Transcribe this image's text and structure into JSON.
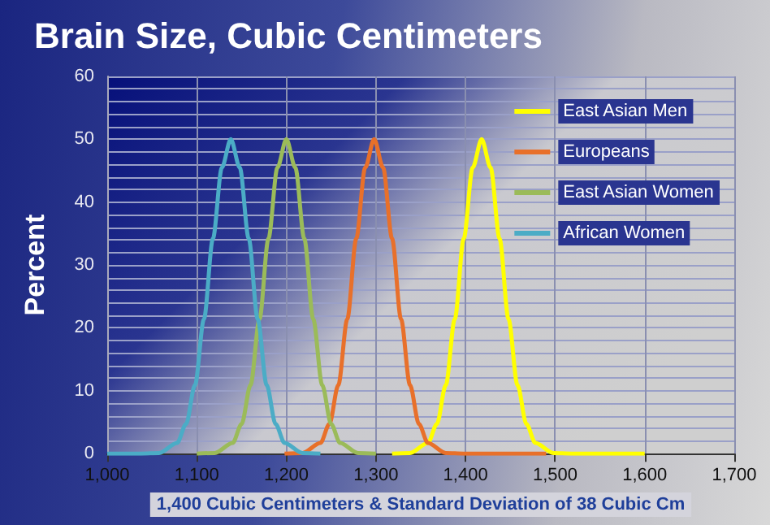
{
  "chart_data": {
    "type": "line",
    "title": "Brain Size, Cubic Centimeters",
    "xlabel": "1,400 Cubic Centimeters & Standard Deviation of 38 Cubic Cm",
    "ylabel": "Percent",
    "xlim": [
      1000,
      1700
    ],
    "xticks": [
      {
        "value": 1000,
        "label": "1,000"
      },
      {
        "value": 1100,
        "label": "1,100"
      },
      {
        "value": 1200,
        "label": "1,200"
      },
      {
        "value": 1300,
        "label": "1,300"
      },
      {
        "value": 1400,
        "label": "1,400"
      },
      {
        "value": 1500,
        "label": "1,500"
      },
      {
        "value": 1600,
        "label": "1,600"
      },
      {
        "value": 1700,
        "label": "1,700"
      }
    ],
    "ylim": [
      0,
      60
    ],
    "yticks": [
      0,
      {
        "value": 2,
        "label": null
      },
      {
        "value": 4,
        "label": null
      },
      {
        "value": 6,
        "label": null
      },
      {
        "value": 8,
        "label": null
      },
      10,
      {
        "value": 12,
        "label": null
      },
      {
        "value": 14,
        "label": null
      },
      {
        "value": 16,
        "label": null
      },
      {
        "value": 18,
        "label": null
      },
      20,
      {
        "value": 22,
        "label": null
      },
      {
        "value": 24,
        "label": null
      },
      {
        "value": 26,
        "label": null
      },
      {
        "value": 28,
        "label": null
      },
      30,
      {
        "value": 32,
        "label": null
      },
      {
        "value": 34,
        "label": null
      },
      {
        "value": 36,
        "label": null
      },
      {
        "value": 38,
        "label": null
      },
      40,
      {
        "value": 42,
        "label": null
      },
      {
        "value": 44,
        "label": null
      },
      {
        "value": 46,
        "label": null
      },
      {
        "value": 48,
        "label": null
      },
      50,
      {
        "value": 52,
        "label": null
      },
      {
        "value": 54,
        "label": null
      },
      {
        "value": 56,
        "label": null
      },
      {
        "value": 58,
        "label": null
      },
      60
    ],
    "grid": true,
    "legend": "top right",
    "marker": "none",
    "line_style": "solid",
    "series": [
      {
        "name": "East Asian Men",
        "color": "#ffff00",
        "x": [
          1318,
          1338,
          1358,
          1368,
          1378,
          1388,
          1398,
          1408,
          1418,
          1428,
          1438,
          1448,
          1458,
          1468,
          1478,
          1498,
          1518,
          1600
        ],
        "values": [
          0,
          0.1,
          1.7,
          4.7,
          10.9,
          21.4,
          34.2,
          45.5,
          50,
          45.5,
          34.2,
          21.4,
          10.9,
          4.7,
          1.7,
          0.1,
          0,
          0
        ]
      },
      {
        "name": "Europeans",
        "color": "#e8702a",
        "x": [
          1198,
          1218,
          1238,
          1248,
          1258,
          1268,
          1278,
          1288,
          1298,
          1308,
          1318,
          1328,
          1338,
          1348,
          1358,
          1378,
          1398,
          1490
        ],
        "values": [
          0,
          0.1,
          1.7,
          4.7,
          10.9,
          21.4,
          34.2,
          45.5,
          50,
          45.5,
          34.2,
          21.4,
          10.9,
          4.7,
          1.7,
          0.1,
          0,
          0
        ]
      },
      {
        "name": "East Asian Women",
        "color": "#9bbb59",
        "x": [
          1100,
          1120,
          1140,
          1150,
          1160,
          1170,
          1180,
          1190,
          1200,
          1210,
          1220,
          1230,
          1240,
          1250,
          1260,
          1280,
          1300
        ],
        "values": [
          0,
          0.1,
          1.7,
          4.7,
          10.9,
          21.4,
          34.2,
          45.5,
          50,
          45.5,
          34.2,
          21.4,
          10.9,
          4.7,
          1.7,
          0.1,
          0
        ]
      },
      {
        "name": "African Women",
        "color": "#4bacc6",
        "x": [
          1000,
          1038,
          1058,
          1078,
          1088,
          1098,
          1108,
          1118,
          1128,
          1138,
          1148,
          1158,
          1168,
          1178,
          1188,
          1198,
          1218,
          1238
        ],
        "values": [
          0,
          0,
          0.1,
          1.7,
          4.7,
          10.9,
          21.4,
          34.2,
          45.5,
          50,
          45.5,
          34.2,
          21.4,
          10.9,
          4.7,
          1.7,
          0.1,
          0
        ]
      }
    ]
  }
}
